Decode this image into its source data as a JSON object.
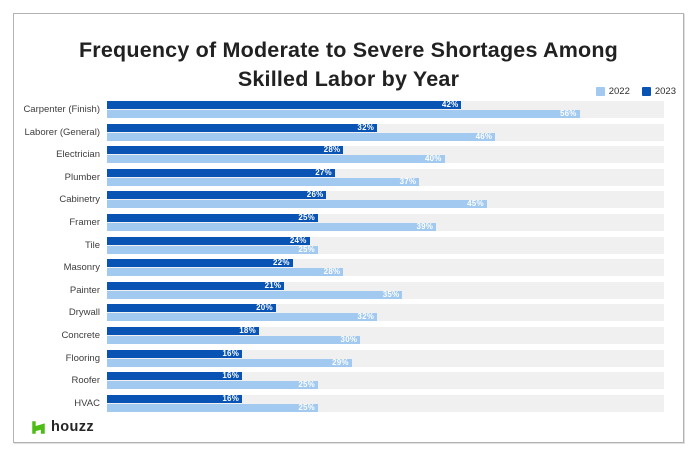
{
  "chart_data": {
    "type": "bar",
    "orientation": "horizontal",
    "title": "Frequency of Moderate to Severe Shortages Among Skilled Labor by Year",
    "title_lines": [
      "Frequency of Moderate to Severe Shortages Among",
      "Skilled Labor by Year"
    ],
    "categories": [
      "Carpenter (Finish)",
      "Laborer (General)",
      "Electrician",
      "Plumber",
      "Cabinetry",
      "Framer",
      "Tile",
      "Masonry",
      "Painter",
      "Drywall",
      "Concrete",
      "Flooring",
      "Roofer",
      "HVAC"
    ],
    "series": [
      {
        "name": "2023",
        "color": "#0853b4",
        "values": [
          42,
          32,
          28,
          27,
          26,
          25,
          24,
          22,
          21,
          20,
          18,
          16,
          16,
          16
        ]
      },
      {
        "name": "2022",
        "color": "#a2c9ef",
        "values": [
          56,
          46,
          40,
          37,
          45,
          39,
          25,
          28,
          35,
          32,
          30,
          29,
          25,
          25
        ]
      }
    ],
    "value_suffix": "%",
    "xlim": [
      0,
      66
    ],
    "grid": false,
    "legend_position": "top-right",
    "track_color": "#f0f0f1"
  },
  "legend": {
    "items": [
      {
        "label": "2022",
        "color": "#a2c9ef"
      },
      {
        "label": "2023",
        "color": "#0853b4"
      }
    ]
  },
  "footer": {
    "brand": "houzz",
    "brand_color": "#4dbc15"
  }
}
